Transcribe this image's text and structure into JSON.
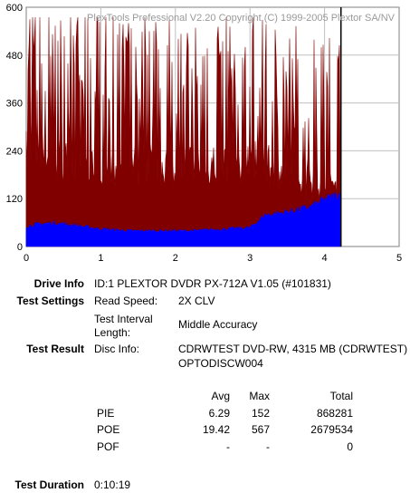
{
  "chart_data": {
    "type": "area",
    "title": "PlexTools Professional V2.20 Copyright (C) 1999-2005 Plextor SA/NV",
    "xlabel": "",
    "ylabel": "",
    "xlim": [
      0,
      5
    ],
    "ylim": [
      0,
      600
    ],
    "x_ticks": [
      "0",
      "1",
      "2",
      "3",
      "4",
      "5"
    ],
    "y_ticks": [
      "0",
      "120",
      "240",
      "360",
      "480",
      "600"
    ],
    "grid": true,
    "data_end_x": 4.22,
    "series": [
      {
        "name": "POE",
        "color": "#800000",
        "x": [
          0,
          0.2,
          0.4,
          0.6,
          0.8,
          1.0,
          1.2,
          1.4,
          1.6,
          1.8,
          2.0,
          2.2,
          2.4,
          2.6,
          2.8,
          3.0,
          3.2,
          3.4,
          3.6,
          3.8,
          4.0,
          4.22
        ],
        "values": [
          300,
          290,
          280,
          270,
          265,
          270,
          275,
          260,
          270,
          265,
          260,
          265,
          270,
          265,
          275,
          270,
          260,
          240,
          230,
          220,
          200,
          210
        ]
      },
      {
        "name": "PIE",
        "color": "#0000ff",
        "x": [
          0,
          0.2,
          0.4,
          0.6,
          0.8,
          1.0,
          1.2,
          1.4,
          1.6,
          1.8,
          2.0,
          2.2,
          2.4,
          2.6,
          2.8,
          3.0,
          3.2,
          3.4,
          3.6,
          3.8,
          4.0,
          4.22
        ],
        "values": [
          52,
          58,
          60,
          55,
          50,
          45,
          42,
          40,
          40,
          40,
          40,
          40,
          42,
          44,
          46,
          48,
          80,
          85,
          92,
          100,
          120,
          135
        ]
      }
    ]
  },
  "info": {
    "drive_info_label": "Drive Info",
    "drive_info_value": "ID:1 PLEXTOR DVDR PX-712A V1.05 (#101831)",
    "test_settings_label": "Test Settings",
    "read_speed_label": "Read Speed:",
    "read_speed_value": "2X CLV",
    "interval_label_1": "Test Interval",
    "interval_label_2": "Length:",
    "interval_value": "Middle Accuracy",
    "test_result_label": "Test Result",
    "disc_info_label": "Disc Info:",
    "disc_info_value_1": "CDRWTEST DVD-RW, 4315 MB (CDRWTEST)",
    "disc_info_value_2": "OPTODISCW004",
    "duration_label": "Test Duration",
    "duration_value": "0:10:19"
  },
  "stats": {
    "headers": {
      "avg": "Avg",
      "max": "Max",
      "total": "Total"
    },
    "rows": [
      {
        "name": "PIE",
        "avg": "6.29",
        "max": "152",
        "total": "868281"
      },
      {
        "name": "POE",
        "avg": "19.42",
        "max": "567",
        "total": "2679534"
      },
      {
        "name": "POF",
        "avg": "-",
        "max": "-",
        "total": "0"
      }
    ]
  }
}
